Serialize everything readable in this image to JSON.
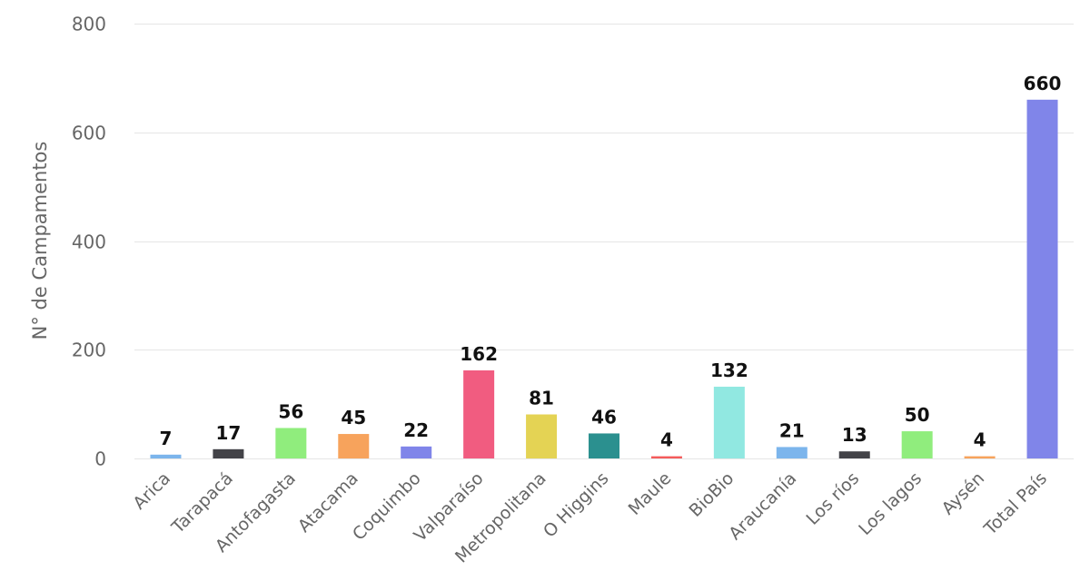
{
  "chart_data": {
    "type": "bar",
    "title": "",
    "xlabel": "",
    "ylabel": "N° de Campamentos",
    "ylim": [
      0,
      800
    ],
    "yticks": [
      0,
      200,
      400,
      600,
      800
    ],
    "grid": true,
    "categories": [
      "Arica",
      "Tarapacá",
      "Antofagasta",
      "Atacama",
      "Coquimbo",
      "Valparaíso",
      "Metropolitana",
      "O Higgins",
      "Maule",
      "BioBio",
      "Araucanía",
      "Los ríos",
      "Los lagos",
      "Aysén",
      "Total País"
    ],
    "values": [
      7,
      17,
      56,
      45,
      22,
      162,
      81,
      46,
      4,
      132,
      21,
      13,
      50,
      4,
      660
    ],
    "colors": [
      "#7cb5ec",
      "#434348",
      "#90ed7d",
      "#f7a35c",
      "#8085e9",
      "#f15c80",
      "#e4d354",
      "#2b908f",
      "#f45b5b",
      "#91e8e1",
      "#7cb5ec",
      "#434348",
      "#90ed7d",
      "#f7a35c",
      "#8085e9"
    ]
  }
}
